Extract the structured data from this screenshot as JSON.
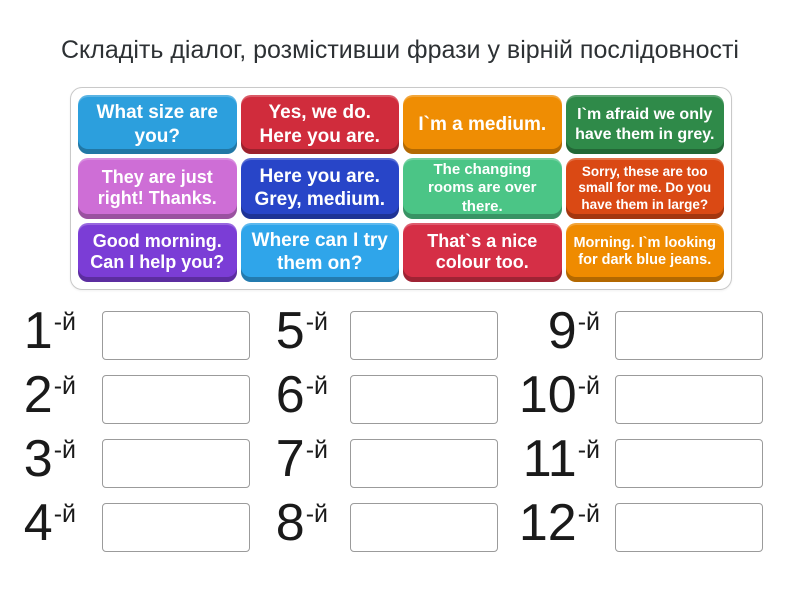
{
  "title": "Складіть діалог, розмістивши фрази у вірній послідовності",
  "board": {
    "tiles": [
      {
        "text": "What size are you?",
        "color": "#2C9FDD"
      },
      {
        "text": "Yes, we do. Here you are.",
        "color": "#D02C3C"
      },
      {
        "text": "I`m a medium.",
        "color": "#EF8D03"
      },
      {
        "text": "I`m afraid we only have them in grey.",
        "color": "#2F8A49"
      },
      {
        "text": "They are just right! Thanks.",
        "color": "#CE6ED6"
      },
      {
        "text": "Here you are. Grey, medium.",
        "color": "#2845C8"
      },
      {
        "text": "The changing rooms are over there.",
        "color": "#4BC586"
      },
      {
        "text": "Sorry, these are too small for me. Do you have them in large?",
        "color": "#DA4914"
      },
      {
        "text": "Good morning. Can I help you?",
        "color": "#7B3DD6"
      },
      {
        "text": "Where can I try them on?",
        "color": "#2FA5EA"
      },
      {
        "text": "That`s a nice colour too.",
        "color": "#D52F46"
      },
      {
        "text": "Morning. I`m looking for dark blue jeans.",
        "color": "#EF8B00"
      }
    ]
  },
  "slots": {
    "suffix": "-й",
    "numbers": [
      "1",
      "2",
      "3",
      "4",
      "5",
      "6",
      "7",
      "8",
      "9",
      "10",
      "11",
      "12"
    ]
  }
}
